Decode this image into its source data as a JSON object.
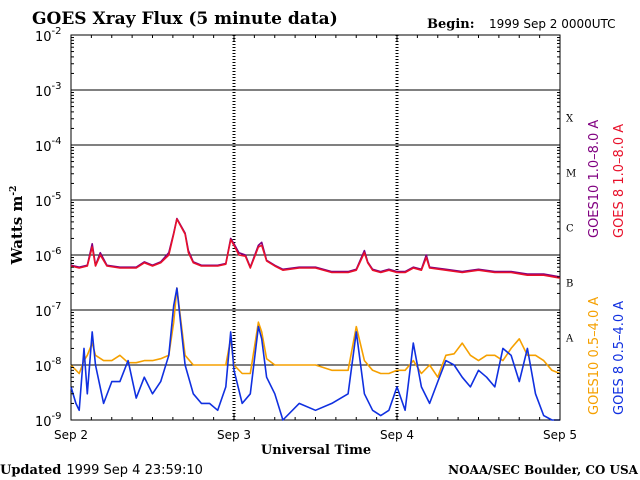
{
  "chart_data": {
    "type": "line",
    "title": "GOES Xray Flux (5 minute data)",
    "begin_label": "Begin:",
    "begin_value": "1999 Sep 2 0000UTC",
    "xlabel": "Universal Time",
    "ylabel": "Watts m",
    "ylabel_sup": "-2",
    "yscale": "log",
    "ylim": [
      1e-09,
      0.01
    ],
    "xlim": [
      0,
      3
    ],
    "y_ticks": [
      {
        "exp": -9,
        "label": "10",
        "sup": "-9"
      },
      {
        "exp": -8,
        "label": "10",
        "sup": "-8"
      },
      {
        "exp": -7,
        "label": "10",
        "sup": "-7"
      },
      {
        "exp": -6,
        "label": "10",
        "sup": "-6"
      },
      {
        "exp": -5,
        "label": "10",
        "sup": "-5"
      },
      {
        "exp": -4,
        "label": "10",
        "sup": "-4"
      },
      {
        "exp": -3,
        "label": "10",
        "sup": "-3"
      },
      {
        "exp": -2,
        "label": "10",
        "sup": "-2"
      }
    ],
    "x_ticks": [
      {
        "x": 0,
        "label": "Sep 2"
      },
      {
        "x": 1,
        "label": "Sep 3"
      },
      {
        "x": 2,
        "label": "Sep 4"
      },
      {
        "x": 3,
        "label": "Sep 5"
      }
    ],
    "flare_classes": [
      {
        "label": "A",
        "exp": -7.5
      },
      {
        "label": "B",
        "exp": -6.5
      },
      {
        "label": "C",
        "exp": -5.5
      },
      {
        "label": "M",
        "exp": -4.5
      },
      {
        "label": "X",
        "exp": -3.5
      }
    ],
    "grid": "horizontal at each decade",
    "legend_placement": "right, rotated",
    "series": [
      {
        "name": "GOES10 1.0–8.0 A",
        "color": "#800080",
        "x": [
          0.0,
          0.05,
          0.1,
          0.13,
          0.15,
          0.18,
          0.22,
          0.3,
          0.4,
          0.45,
          0.5,
          0.55,
          0.6,
          0.63,
          0.65,
          0.7,
          0.72,
          0.75,
          0.8,
          0.85,
          0.9,
          0.95,
          0.98,
          1.0,
          1.03,
          1.07,
          1.1,
          1.15,
          1.17,
          1.2,
          1.25,
          1.3,
          1.4,
          1.5,
          1.6,
          1.7,
          1.75,
          1.8,
          1.82,
          1.85,
          1.9,
          1.95,
          2.0,
          2.05,
          2.1,
          2.15,
          2.18,
          2.2,
          2.3,
          2.4,
          2.5,
          2.6,
          2.7,
          2.8,
          2.9,
          3.0
        ],
        "y": [
          6.5e-07,
          6e-07,
          6.5e-07,
          1.6e-06,
          6.5e-07,
          1.1e-06,
          6.5e-07,
          6e-07,
          6e-07,
          7.5e-07,
          6.5e-07,
          7.5e-07,
          1.1e-06,
          2.5e-06,
          4.6e-06,
          2.5e-06,
          1.2e-06,
          7.5e-07,
          6.5e-07,
          6.5e-07,
          6.5e-07,
          7e-07,
          2e-06,
          1.6e-06,
          1.1e-06,
          1e-06,
          6e-07,
          1.5e-06,
          1.7e-06,
          8e-07,
          6.5e-07,
          5.5e-07,
          6e-07,
          6e-07,
          5e-07,
          5e-07,
          5.5e-07,
          1.2e-06,
          7.5e-07,
          5.5e-07,
          5e-07,
          5.5e-07,
          5e-07,
          5e-07,
          6e-07,
          5.5e-07,
          1e-06,
          6e-07,
          5.5e-07,
          5e-07,
          5.5e-07,
          5e-07,
          5e-07,
          4.5e-07,
          4.5e-07,
          4e-07
        ]
      },
      {
        "name": "GOES 8 1.0–8.0 A",
        "color": "#e8102a",
        "x": [
          0.0,
          0.05,
          0.1,
          0.13,
          0.15,
          0.18,
          0.22,
          0.3,
          0.4,
          0.45,
          0.5,
          0.55,
          0.6,
          0.63,
          0.65,
          0.7,
          0.72,
          0.75,
          0.8,
          0.85,
          0.9,
          0.95,
          0.98,
          1.0,
          1.03,
          1.07,
          1.1,
          1.15,
          1.17,
          1.2,
          1.25,
          1.3,
          1.4,
          1.5,
          1.6,
          1.7,
          1.75,
          1.8,
          1.82,
          1.85,
          1.9,
          1.95,
          2.0,
          2.05,
          2.1,
          2.15,
          2.18,
          2.2,
          2.3,
          2.4,
          2.5,
          2.6,
          2.7,
          2.8,
          2.9,
          3.0
        ],
        "y": [
          6.3e-07,
          5.8e-07,
          6.3e-07,
          1.4e-06,
          6.3e-07,
          1e-06,
          6.3e-07,
          5.8e-07,
          5.8e-07,
          7.2e-07,
          6.3e-07,
          7.2e-07,
          1e-06,
          2.4e-06,
          4.5e-06,
          2.4e-06,
          1.1e-06,
          7.2e-07,
          6.3e-07,
          6.3e-07,
          6.3e-07,
          6.8e-07,
          1.9e-06,
          1.5e-06,
          1e-06,
          9.5e-07,
          5.8e-07,
          1.4e-06,
          1.5e-06,
          7.8e-07,
          6.3e-07,
          5.3e-07,
          5.8e-07,
          5.8e-07,
          4.8e-07,
          4.8e-07,
          5.3e-07,
          1.1e-06,
          7.2e-07,
          5.3e-07,
          4.8e-07,
          5.3e-07,
          4.8e-07,
          4.8e-07,
          5.8e-07,
          5.3e-07,
          9e-07,
          5.8e-07,
          5.3e-07,
          4.8e-07,
          5.3e-07,
          4.8e-07,
          4.8e-07,
          4.3e-07,
          4.3e-07,
          3.8e-07
        ]
      },
      {
        "name": "GOES10 0.5–4.0 A",
        "color": "#f5a000",
        "x": [
          0.0,
          0.05,
          0.08,
          0.1,
          0.13,
          0.15,
          0.2,
          0.25,
          0.3,
          0.35,
          0.4,
          0.45,
          0.5,
          0.55,
          0.6,
          0.63,
          0.65,
          0.7,
          0.75,
          0.8,
          0.85,
          0.9,
          0.95,
          0.98,
          1.0,
          1.05,
          1.1,
          1.15,
          1.17,
          1.2,
          1.25,
          1.3,
          1.4,
          1.5,
          1.6,
          1.7,
          1.75,
          1.8,
          1.85,
          1.9,
          1.95,
          2.0,
          2.05,
          2.1,
          2.15,
          2.2,
          2.25,
          2.3,
          2.35,
          2.4,
          2.45,
          2.5,
          2.55,
          2.6,
          2.65,
          2.7,
          2.75,
          2.8,
          2.85,
          2.9,
          2.95,
          3.0
        ],
        "y": [
          1e-08,
          7e-09,
          1.2e-08,
          1.5e-08,
          2.5e-08,
          1.5e-08,
          1.2e-08,
          1.2e-08,
          1.5e-08,
          1.1e-08,
          1.1e-08,
          1.2e-08,
          1.2e-08,
          1.3e-08,
          1.5e-08,
          6e-08,
          2.5e-07,
          1.5e-08,
          1e-08,
          1e-08,
          1e-08,
          1e-08,
          1e-08,
          3e-08,
          1e-08,
          7e-09,
          7e-09,
          6e-08,
          4e-08,
          1.3e-08,
          1e-08,
          1e-08,
          1e-08,
          1e-08,
          8e-09,
          8e-09,
          5e-08,
          1.2e-08,
          8e-09,
          7e-09,
          7e-09,
          8e-09,
          8e-09,
          1.2e-08,
          7e-09,
          1e-08,
          6e-09,
          1.5e-08,
          1.6e-08,
          2.5e-08,
          1.5e-08,
          1.2e-08,
          1.5e-08,
          1.5e-08,
          1.2e-08,
          2e-08,
          3e-08,
          1.5e-08,
          1.5e-08,
          1.2e-08,
          8e-09,
          7e-09
        ]
      },
      {
        "name": "GOES 8 0.5–4.0 A",
        "color": "#1030e0",
        "x": [
          0.0,
          0.03,
          0.05,
          0.08,
          0.1,
          0.13,
          0.15,
          0.2,
          0.25,
          0.3,
          0.35,
          0.4,
          0.45,
          0.5,
          0.55,
          0.6,
          0.63,
          0.65,
          0.7,
          0.75,
          0.8,
          0.85,
          0.9,
          0.95,
          0.98,
          1.0,
          1.05,
          1.1,
          1.15,
          1.17,
          1.2,
          1.25,
          1.3,
          1.4,
          1.5,
          1.6,
          1.7,
          1.75,
          1.8,
          1.85,
          1.9,
          1.95,
          2.0,
          2.05,
          2.1,
          2.15,
          2.2,
          2.25,
          2.3,
          2.35,
          2.4,
          2.45,
          2.5,
          2.55,
          2.6,
          2.65,
          2.7,
          2.75,
          2.8,
          2.85,
          2.9,
          2.95,
          3.0
        ],
        "y": [
          4e-09,
          2e-09,
          1.5e-09,
          2e-08,
          3e-09,
          4e-08,
          1e-08,
          2e-09,
          5e-09,
          5e-09,
          1.2e-08,
          2.5e-09,
          6e-09,
          3e-09,
          5e-09,
          1.5e-08,
          1.2e-07,
          2.5e-07,
          1e-08,
          3e-09,
          2e-09,
          2e-09,
          1.5e-09,
          4e-09,
          4e-08,
          8e-09,
          2e-09,
          3e-09,
          5e-08,
          3e-08,
          6e-09,
          3e-09,
          1e-09,
          2e-09,
          1.5e-09,
          2e-09,
          3e-09,
          4e-08,
          3e-09,
          1.5e-09,
          1.2e-09,
          1.5e-09,
          4e-09,
          1.5e-09,
          2.5e-08,
          4e-09,
          2e-09,
          5e-09,
          1.2e-08,
          1e-08,
          6e-09,
          4e-09,
          8e-09,
          6e-09,
          4e-09,
          2e-08,
          1.5e-08,
          5e-09,
          2e-08,
          3e-09,
          1.2e-09,
          1e-09,
          1e-09
        ]
      }
    ]
  },
  "footer": {
    "updated_label": "Updated",
    "updated_value": "1999 Sep  4 23:59:10",
    "credit": "NOAA/SEC Boulder, CO USA"
  }
}
